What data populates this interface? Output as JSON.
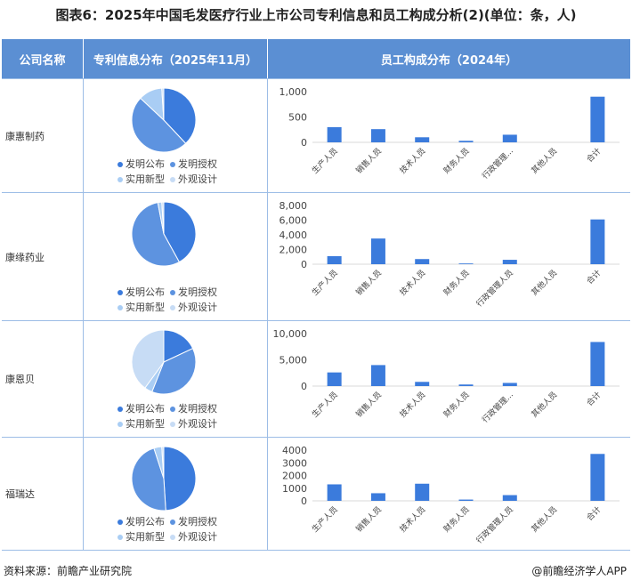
{
  "title": "图表6：2025年中国毛发医疗行业上市公司专利信息和员工构成分析(2)(单位：条，人)",
  "header": {
    "col_company": "公司名称",
    "col_patent": "专利信息分布（2025年11月）",
    "col_staff": "员工构成分布（2024年）"
  },
  "colors": {
    "header_bg": "#5b8fd3",
    "bar": "#3b7bdc",
    "pie": [
      "#3b7bdc",
      "#5d93e0",
      "#a9cdf4",
      "#c7dcf5"
    ]
  },
  "legend": [
    "发明公布",
    "发明授权",
    "实用新型",
    "外观设计"
  ],
  "footer": {
    "source": "资料来源：前瞻产业研究院",
    "brand": "@前瞻经济学人APP"
  },
  "chart_data": [
    {
      "type": "pie",
      "company": "康惠制药",
      "labels": [
        "发明公布",
        "发明授权",
        "实用新型",
        "外观设计"
      ],
      "values": [
        38,
        49,
        12,
        1
      ]
    },
    {
      "type": "bar",
      "company": "康惠制药",
      "categories": [
        "生产人员",
        "销售人员",
        "技术人员",
        "财务人员",
        "行政管理...",
        "其他人员",
        "合计"
      ],
      "values": [
        300,
        260,
        100,
        30,
        150,
        0,
        900
      ],
      "yticks": [
        "1,000",
        "500",
        "0"
      ],
      "ylim": [
        0,
        1000
      ]
    },
    {
      "type": "pie",
      "company": "康缘药业",
      "labels": [
        "发明公布",
        "发明授权",
        "实用新型",
        "外观设计"
      ],
      "values": [
        42,
        55,
        2,
        1
      ]
    },
    {
      "type": "bar",
      "company": "康缘药业",
      "categories": [
        "生产人员",
        "销售人员",
        "技术人员",
        "财务人员",
        "行政管理人员",
        "其他人员",
        "合计"
      ],
      "values": [
        1100,
        3500,
        700,
        100,
        600,
        0,
        6100
      ],
      "yticks": [
        "8,000",
        "6,000",
        "4,000",
        "2,000",
        "0"
      ],
      "ylim": [
        0,
        8000
      ]
    },
    {
      "type": "pie",
      "company": "康恩贝",
      "labels": [
        "发明公布",
        "发明授权",
        "实用新型",
        "外观设计"
      ],
      "values": [
        18,
        38,
        4,
        40
      ]
    },
    {
      "type": "bar",
      "company": "康恩贝",
      "categories": [
        "生产人员",
        "销售人员",
        "技术人员",
        "财务人员",
        "行政管理...",
        "其他人员",
        "合计"
      ],
      "values": [
        2600,
        4000,
        800,
        300,
        600,
        0,
        8400
      ],
      "yticks": [
        "10,000",
        "5,000",
        "0"
      ],
      "ylim": [
        0,
        10000
      ]
    },
    {
      "type": "pie",
      "company": "福瑞达",
      "labels": [
        "发明公布",
        "发明授权",
        "实用新型",
        "外观设计"
      ],
      "values": [
        49,
        46,
        4,
        1
      ]
    },
    {
      "type": "bar",
      "company": "福瑞达",
      "categories": [
        "生产人员",
        "销售人员",
        "技术人员",
        "财务人员",
        "行政管理人员",
        "其他人员",
        "合计"
      ],
      "values": [
        1300,
        600,
        1350,
        100,
        450,
        0,
        3700
      ],
      "yticks": [
        "4000",
        "3000",
        "2000",
        "1000",
        "0"
      ],
      "ylim": [
        0,
        4000
      ]
    }
  ]
}
